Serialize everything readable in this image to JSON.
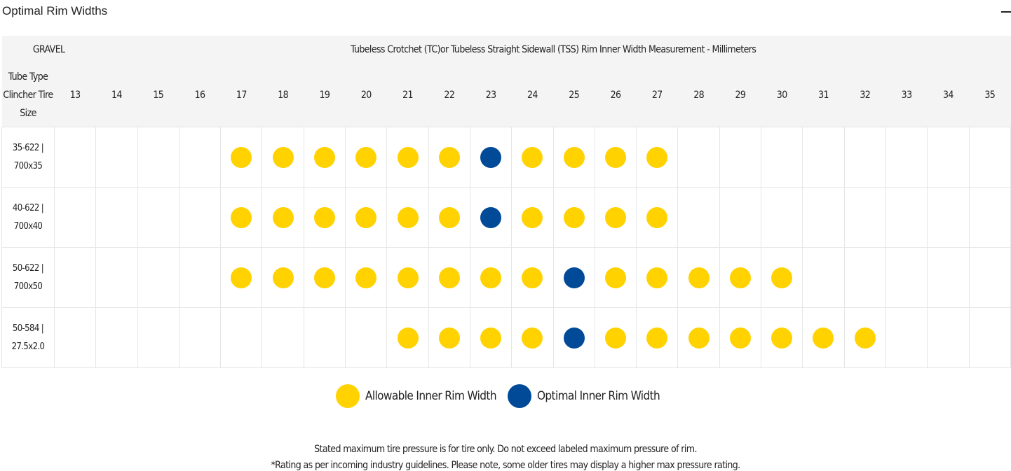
{
  "section": {
    "title": "Optimal Rim Widths"
  },
  "table": {
    "category": "GRAVEL",
    "header_title": "Tubeless Crotchet (TC)or Tubeless Straight Sidewall (TSS) Rim Inner Width Measurement - Millimeters",
    "size_header": [
      "Tube Type",
      "Clincher Tire",
      "Size"
    ],
    "widths": [
      "13",
      "14",
      "15",
      "16",
      "17",
      "18",
      "19",
      "20",
      "21",
      "22",
      "23",
      "24",
      "25",
      "26",
      "27",
      "28",
      "29",
      "30",
      "31",
      "32",
      "33",
      "34",
      "35"
    ],
    "rows": [
      {
        "size_line1": "35-622 |",
        "size_line2": "700x35",
        "cells": [
          "",
          "",
          "",
          "",
          "A",
          "A",
          "A",
          "A",
          "A",
          "A",
          "O",
          "A",
          "A",
          "A",
          "A",
          "",
          "",
          "",
          "",
          "",
          "",
          "",
          ""
        ]
      },
      {
        "size_line1": "40-622 |",
        "size_line2": "700x40",
        "cells": [
          "",
          "",
          "",
          "",
          "A",
          "A",
          "A",
          "A",
          "A",
          "A",
          "O",
          "A",
          "A",
          "A",
          "A",
          "",
          "",
          "",
          "",
          "",
          "",
          "",
          ""
        ]
      },
      {
        "size_line1": "50-622 |",
        "size_line2": "700x50",
        "cells": [
          "",
          "",
          "",
          "",
          "A",
          "A",
          "A",
          "A",
          "A",
          "A",
          "A",
          "A",
          "O",
          "A",
          "A",
          "A",
          "A",
          "A",
          "",
          "",
          "",
          "",
          ""
        ]
      },
      {
        "size_line1": "50-584 |",
        "size_line2": "27.5x2.0",
        "cells": [
          "",
          "",
          "",
          "",
          "",
          "",
          "",
          "",
          "A",
          "A",
          "A",
          "A",
          "O",
          "A",
          "A",
          "A",
          "A",
          "A",
          "A",
          "A",
          "",
          "",
          ""
        ]
      }
    ]
  },
  "legend": {
    "allowable_label": "Allowable Inner Rim Width",
    "optimal_label": "Optimal Inner Rim Width",
    "allowable_color": "#ffd200",
    "optimal_color": "#004a98"
  },
  "notes": {
    "line1": "Stated maximum tire pressure is for tire only. Do not exceed labeled maximum pressure of rim.",
    "line2": "*Rating as per incoming industry guidelines. Please note, some older tires may display a higher max pressure rating."
  }
}
